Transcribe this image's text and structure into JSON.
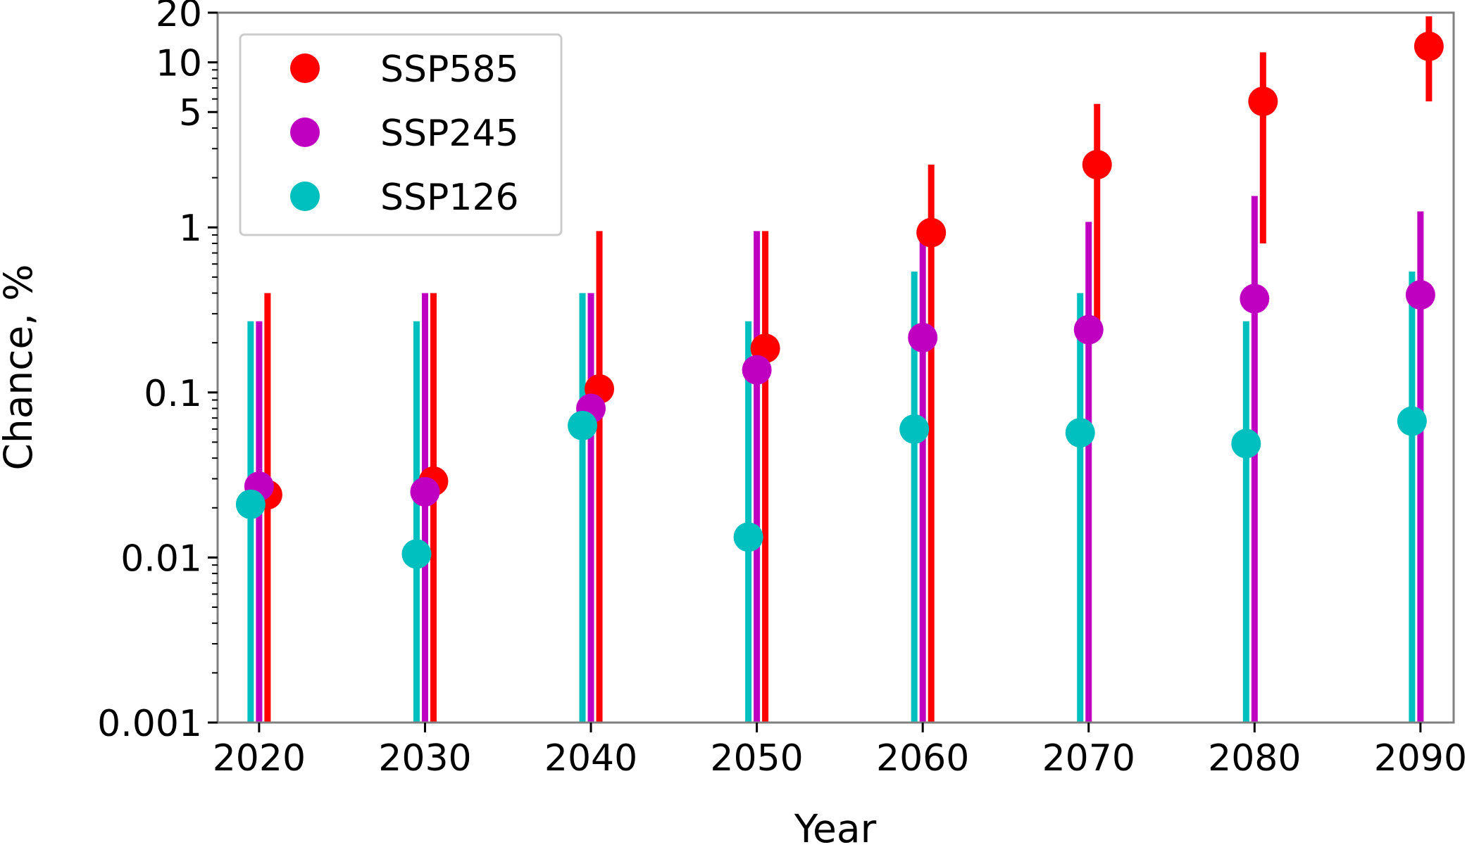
{
  "chart_data": {
    "type": "scatter",
    "title": "",
    "xlabel": "Year",
    "ylabel": "Chance, %",
    "yscale": "log",
    "ylim": [
      0.001,
      20
    ],
    "xlim": [
      2017.5,
      2092
    ],
    "x": [
      2020,
      2030,
      2040,
      2050,
      2060,
      2070,
      2080,
      2090
    ],
    "xticks": [
      "2020",
      "2030",
      "2040",
      "2050",
      "2060",
      "2070",
      "2080",
      "2090"
    ],
    "yticks": [
      {
        "value": 0.001,
        "label": "0.001"
      },
      {
        "value": 0.01,
        "label": "0.01"
      },
      {
        "value": 0.1,
        "label": "0.1"
      },
      {
        "value": 1,
        "label": "1"
      },
      {
        "value": 5,
        "label": "5"
      },
      {
        "value": 10,
        "label": "10"
      },
      {
        "value": 20,
        "label": "20"
      }
    ],
    "grid": false,
    "legend_position": "top-left",
    "series": [
      {
        "name": "SSP585",
        "color": "#ff0000",
        "values": [
          0.024,
          0.029,
          0.105,
          0.185,
          0.93,
          2.4,
          5.8,
          12.5
        ],
        "error_low": [
          0.001,
          0.001,
          0.001,
          0.001,
          0.001,
          0.23,
          0.8,
          5.8
        ],
        "error_high": [
          0.4,
          0.4,
          0.95,
          0.95,
          2.4,
          5.6,
          11.5,
          19
        ]
      },
      {
        "name": "SSP245",
        "color": "#c000c0",
        "values": [
          0.027,
          0.025,
          0.08,
          0.137,
          0.215,
          0.24,
          0.37,
          0.39
        ],
        "error_low": [
          0.001,
          0.001,
          0.001,
          0.001,
          0.001,
          0.001,
          0.001,
          0.001
        ],
        "error_high": [
          0.27,
          0.4,
          0.4,
          0.95,
          0.95,
          1.08,
          1.55,
          1.25
        ]
      },
      {
        "name": "SSP126",
        "color": "#00bfbf",
        "values": [
          0.021,
          0.0105,
          0.063,
          0.0133,
          0.06,
          0.057,
          0.049,
          0.067
        ],
        "error_low": [
          0.001,
          0.001,
          0.001,
          0.001,
          0.001,
          0.001,
          0.001,
          0.001
        ],
        "error_high": [
          0.27,
          0.27,
          0.4,
          0.27,
          0.54,
          0.4,
          0.27,
          0.54
        ]
      }
    ]
  }
}
